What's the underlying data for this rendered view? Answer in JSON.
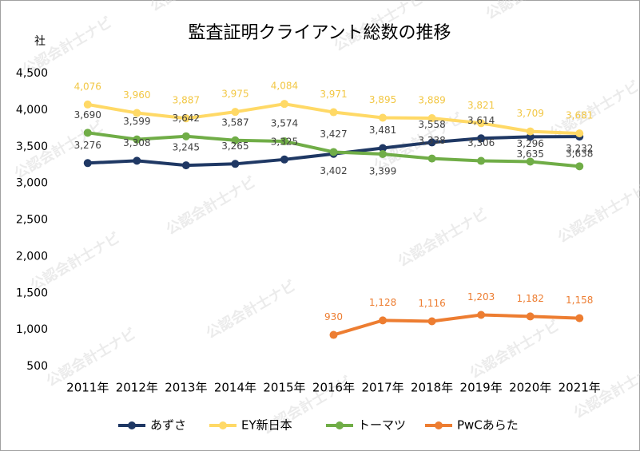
{
  "chart_data": {
    "type": "line",
    "title": "監査証明クライアント総数の推移",
    "y_label": "社",
    "watermark": "公認会計士ナビ",
    "categories": [
      "2011年",
      "2012年",
      "2013年",
      "2014年",
      "2015年",
      "2016年",
      "2017年",
      "2018年",
      "2019年",
      "2020年",
      "2021年"
    ],
    "ylim": [
      500,
      4500
    ],
    "yticks": [
      500,
      {
        "value": 1000,
        "label": "1,000"
      },
      {
        "value": 1500,
        "label": "1,500"
      },
      {
        "value": 2000,
        "label": "2,000"
      },
      {
        "value": 2500,
        "label": "2,500"
      },
      {
        "value": 3000,
        "label": "3,000"
      },
      {
        "value": 3500,
        "label": "3,500"
      },
      {
        "value": 4000,
        "label": "4,000"
      },
      {
        "value": 4500,
        "label": "4,500"
      }
    ],
    "grid": false,
    "legend": "bottom",
    "series": [
      {
        "name": "あずさ",
        "color": "#1f3864",
        "label_color": "#404040",
        "values": [
          3276,
          3308,
          3245,
          3265,
          3325,
          3402,
          3481,
          3558,
          3614,
          3635,
          3638
        ],
        "value_labels": [
          "3,276",
          "3,308",
          "3,245",
          "3,265",
          "3,325",
          "3,402",
          "3,481",
          "3,558",
          "3,614",
          "3,635",
          "3,638"
        ]
      },
      {
        "name": "EY新日本",
        "color": "#ffd966",
        "label_color": "#f2c744",
        "values": [
          4076,
          3960,
          3887,
          3975,
          4084,
          3971,
          3895,
          3889,
          3821,
          3709,
          3681
        ],
        "value_labels": [
          "4,076",
          "3,960",
          "3,887",
          "3,975",
          "4,084",
          "3,971",
          "3,895",
          "3,889",
          "3,821",
          "3,709",
          "3,681"
        ]
      },
      {
        "name": "トーマツ",
        "color": "#70ad47",
        "label_color": "#404040",
        "values": [
          3690,
          3599,
          3642,
          3587,
          3574,
          3427,
          3399,
          3338,
          3306,
          3296,
          3232
        ],
        "value_labels": [
          "3,690",
          "3,599",
          "3,642",
          "3,587",
          "3,574",
          "3,427",
          "3,399",
          "3,338",
          "3,306",
          "3,296",
          "3,232"
        ]
      },
      {
        "name": "PwCあらた",
        "color": "#ed7d31",
        "label_color": "#ed7d31",
        "values": [
          null,
          null,
          null,
          null,
          null,
          930,
          1128,
          1116,
          1203,
          1182,
          1158
        ],
        "value_labels": [
          null,
          null,
          null,
          null,
          null,
          "930",
          "1,128",
          "1,116",
          "1,203",
          "1,182",
          "1,158"
        ]
      }
    ]
  }
}
